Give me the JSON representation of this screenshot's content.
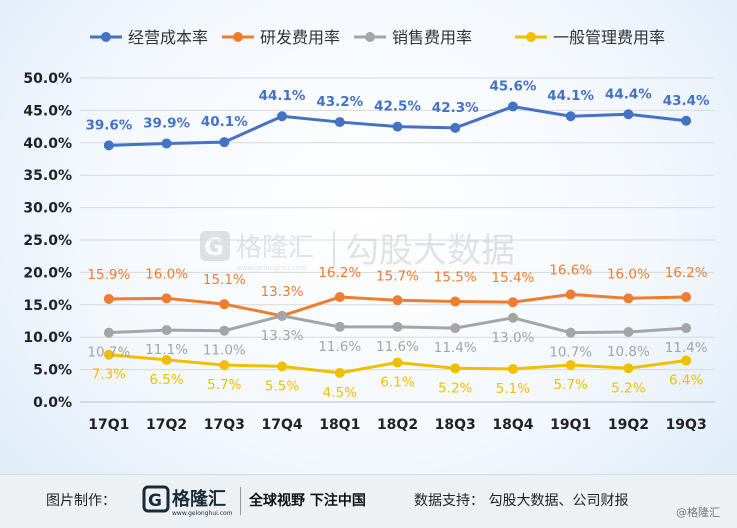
{
  "chart_data": {
    "type": "line",
    "categories": [
      "17Q1",
      "17Q2",
      "17Q3",
      "17Q4",
      "18Q1",
      "18Q2",
      "18Q3",
      "18Q4",
      "19Q1",
      "19Q2",
      "19Q3"
    ],
    "ylim": [
      0,
      50
    ],
    "yticks": [
      "0.0%",
      "5.0%",
      "10.0%",
      "15.0%",
      "20.0%",
      "25.0%",
      "30.0%",
      "35.0%",
      "40.0%",
      "45.0%",
      "50.0%"
    ],
    "legend_position": "top",
    "series": [
      {
        "name": "经营成本率",
        "color": "#4472c4",
        "values": [
          39.6,
          39.9,
          40.1,
          44.1,
          43.2,
          42.5,
          42.3,
          45.6,
          44.1,
          44.4,
          43.4
        ],
        "labels": [
          "39.6%",
          "39.9%",
          "40.1%",
          "44.1%",
          "43.2%",
          "42.5%",
          "42.3%",
          "45.6%",
          "44.1%",
          "44.4%",
          "43.4%"
        ]
      },
      {
        "name": "研发费用率",
        "color": "#ed7d31",
        "values": [
          15.9,
          16.0,
          15.1,
          13.3,
          16.2,
          15.7,
          15.5,
          15.4,
          16.6,
          16.0,
          16.2
        ],
        "labels": [
          "15.9%",
          "16.0%",
          "15.1%",
          "13.3%",
          "16.2%",
          "15.7%",
          "15.5%",
          "15.4%",
          "16.6%",
          "16.0%",
          "16.2%"
        ]
      },
      {
        "name": "销售费用率",
        "color": "#a5a5a5",
        "values": [
          10.7,
          11.1,
          11.0,
          13.3,
          11.6,
          11.6,
          11.4,
          13.0,
          10.7,
          10.8,
          11.4
        ],
        "labels": [
          "10.7%",
          "11.1%",
          "11.0%",
          "13.3%",
          "11.6%",
          "11.6%",
          "11.4%",
          "13.0%",
          "10.7%",
          "10.8%",
          "11.4%"
        ]
      },
      {
        "name": "一般管理费用率",
        "color": "#f0c000",
        "values": [
          7.3,
          6.5,
          5.7,
          5.5,
          4.5,
          6.1,
          5.2,
          5.1,
          5.7,
          5.2,
          6.4
        ],
        "labels": [
          "7.3%",
          "6.5%",
          "5.7%",
          "5.5%",
          "4.5%",
          "6.1%",
          "5.2%",
          "5.1%",
          "5.7%",
          "5.2%",
          "6.4%"
        ]
      }
    ]
  },
  "watermark": {
    "brand": "格隆汇",
    "domain": "www.gelonghui.com",
    "partner": "勾股大数据"
  },
  "footer": {
    "label": "图片制作：",
    "logo_text": "格隆汇",
    "logo_domain": "www.gelonghui.com",
    "slogan": "全球视野 下注中国",
    "source": "数据支持：  勾股大数据、公司财报",
    "credit": "@格隆汇"
  }
}
